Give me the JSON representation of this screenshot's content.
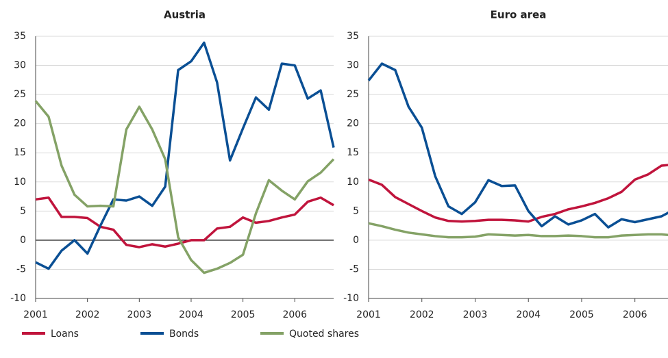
{
  "chart_data": [
    {
      "type": "line",
      "title": "Austria",
      "x": [
        2001,
        2001.25,
        2001.5,
        2001.75,
        2002,
        2002.25,
        2002.5,
        2002.75,
        2003,
        2003.25,
        2003.5,
        2003.75,
        2004,
        2004.25,
        2004.5,
        2004.75,
        2005,
        2005.25,
        2005.5,
        2005.75,
        2006,
        2006.25,
        2006.5,
        2006.75
      ],
      "xlim": [
        2001,
        2006.75
      ],
      "xticks": [
        2001,
        2002,
        2003,
        2004,
        2005,
        2006
      ],
      "ylim": [
        -10,
        35
      ],
      "yticks": [
        -10,
        -5,
        0,
        5,
        10,
        15,
        20,
        25,
        30,
        35
      ],
      "grid": true,
      "zero_line": true,
      "series": [
        {
          "name": "Loans",
          "color": "#c0143c",
          "values": [
            7,
            7.3,
            4,
            4,
            3.8,
            2.3,
            1.8,
            -0.8,
            -1.2,
            -0.7,
            -1.1,
            -0.6,
            0,
            0,
            2,
            2.3,
            3.9,
            3,
            3.3,
            3.9,
            4.4,
            6.6,
            7.3,
            6
          ]
        },
        {
          "name": "Bonds",
          "color": "#0a4f94",
          "values": [
            -3.8,
            -4.9,
            -1.8,
            0,
            -2.3,
            2.5,
            7,
            6.8,
            7.5,
            5.9,
            9.2,
            29.2,
            30.7,
            33.9,
            27.1,
            13.7,
            19.2,
            24.5,
            22.4,
            30.3,
            30,
            24.3,
            25.7,
            15.9
          ]
        },
        {
          "name": "Quoted shares",
          "color": "#84a266",
          "values": [
            23.9,
            21.2,
            12.8,
            7.8,
            5.8,
            5.9,
            5.8,
            19,
            22.9,
            19,
            13.9,
            0.5,
            -3.4,
            -5.6,
            -4.9,
            -3.9,
            -2.5,
            4.6,
            10.3,
            8.5,
            7,
            10.1,
            11.6,
            13.9
          ]
        }
      ]
    },
    {
      "type": "line",
      "title": "Euro area",
      "x": [
        2001,
        2001.25,
        2001.5,
        2001.75,
        2002,
        2002.25,
        2002.5,
        2002.75,
        2003,
        2003.25,
        2003.5,
        2003.75,
        2004,
        2004.25,
        2004.5,
        2004.75,
        2005,
        2005.25,
        2005.5,
        2005.75,
        2006,
        2006.25,
        2006.5,
        2006.75
      ],
      "xlim": [
        2001,
        2006.75
      ],
      "xticks": [
        2001,
        2002,
        2003,
        2004,
        2005,
        2006
      ],
      "ylim": [
        -10,
        35
      ],
      "yticks": [
        -10,
        -5,
        0,
        5,
        10,
        15,
        20,
        25,
        30,
        35
      ],
      "grid": true,
      "zero_line": false,
      "series": [
        {
          "name": "Loans",
          "color": "#c0143c",
          "values": [
            10.4,
            9.5,
            7.4,
            6.2,
            5,
            3.9,
            3.3,
            3.2,
            3.3,
            3.5,
            3.5,
            3.4,
            3.2,
            4,
            4.5,
            5.3,
            5.8,
            6.4,
            7.2,
            8.3,
            10.4,
            11.3,
            12.8,
            13
          ]
        },
        {
          "name": "Bonds",
          "color": "#0a4f94",
          "values": [
            27.4,
            30.3,
            29.2,
            22.9,
            19.3,
            11,
            5.8,
            4.5,
            6.5,
            10.3,
            9.3,
            9.4,
            5,
            2.4,
            4.1,
            2.7,
            3.4,
            4.5,
            2.2,
            3.6,
            3.1,
            3.6,
            4.1,
            5.3
          ]
        },
        {
          "name": "Quoted shares",
          "color": "#84a266",
          "values": [
            2.9,
            2.4,
            1.8,
            1.3,
            1,
            0.7,
            0.5,
            0.5,
            0.6,
            1,
            0.9,
            0.8,
            0.9,
            0.7,
            0.7,
            0.8,
            0.7,
            0.5,
            0.5,
            0.8,
            0.9,
            1,
            1,
            0.8
          ]
        }
      ]
    }
  ]
}
